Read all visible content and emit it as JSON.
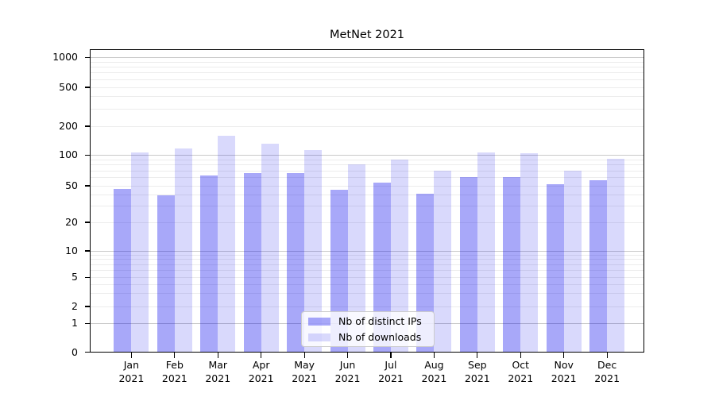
{
  "title": "MetNet 2021",
  "chart_data": {
    "type": "bar",
    "title": "MetNet 2021",
    "categories": [
      "Jan",
      "Feb",
      "Mar",
      "Apr",
      "May",
      "Jun",
      "Jul",
      "Aug",
      "Sep",
      "Oct",
      "Nov",
      "Dec"
    ],
    "year": "2021",
    "series": [
      {
        "name": "Nb of distinct IPs",
        "color": "#0000ee",
        "alpha": 0.34,
        "values": [
          46,
          39,
          63,
          67,
          66,
          45,
          54,
          41,
          61,
          61,
          52,
          57
        ]
      },
      {
        "name": "Nb of downloads",
        "color": "#0000ee",
        "alpha": 0.15,
        "values": [
          107,
          118,
          160,
          132,
          113,
          81,
          91,
          70,
          107,
          105,
          70,
          92
        ]
      }
    ],
    "yscale": "symlog",
    "yticks": [
      0,
      1,
      2,
      5,
      10,
      20,
      50,
      100,
      200,
      500,
      1000
    ],
    "ylim": [
      0,
      1400
    ],
    "xlabel": "",
    "ylabel": "",
    "grid": "horizontal log gridlines, minor light / major dark at powers of 10",
    "legend_position": "lower center inside plot",
    "colors": {
      "bar_dark_composite": "#a8a8f9",
      "bar_light_composite": "#d9d9fc",
      "grid_minor": "#ececec",
      "grid_major": "#c9c9c9",
      "axis": "#000000",
      "background": "#ffffff"
    }
  }
}
